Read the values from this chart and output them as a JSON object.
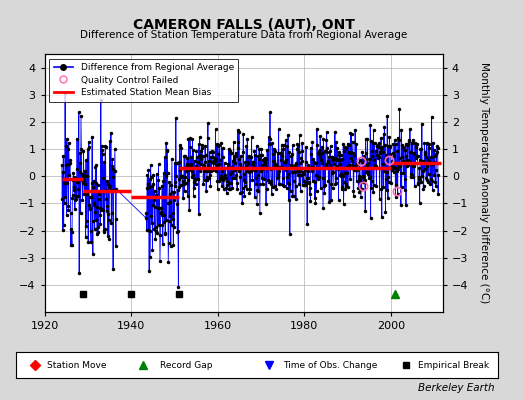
{
  "title": "CAMERON FALLS (AUT), ONT",
  "subtitle": "Difference of Station Temperature Data from Regional Average",
  "ylabel": "Monthly Temperature Anomaly Difference (°C)",
  "xlim": [
    1920,
    2012
  ],
  "ylim": [
    -5,
    4.5
  ],
  "yticks": [
    -4,
    -3,
    -2,
    -1,
    0,
    1,
    2,
    3,
    4
  ],
  "xticks": [
    1920,
    1940,
    1960,
    1980,
    2000
  ],
  "background_color": "#d8d8d8",
  "plot_bg_color": "#ffffff",
  "grid_color": "#b0b0b0",
  "line_color": "#0000ff",
  "bias_color": "#ff0000",
  "marker_color": "#000000",
  "qc_color": "#ff69b4",
  "segments": [
    {
      "x_start": 1924.0,
      "x_end": 1929.0,
      "bias": -0.1
    },
    {
      "x_start": 1929.0,
      "x_end": 1940.0,
      "bias": -0.55
    },
    {
      "x_start": 1940.0,
      "x_end": 1951.0,
      "bias": -0.75
    },
    {
      "x_start": 1951.0,
      "x_end": 2000.0,
      "bias": 0.3
    },
    {
      "x_start": 2000.0,
      "x_end": 2011.5,
      "bias": 0.5
    }
  ],
  "empirical_breaks": [
    1929,
    1940,
    1951
  ],
  "record_gaps": [
    2001
  ],
  "station_moves": [],
  "time_obs_changes": [],
  "qc_failed_approx": [
    [
      1993.0,
      0.55
    ],
    [
      1993.5,
      -0.35
    ],
    [
      1999.5,
      0.6
    ],
    [
      2001.5,
      -0.55
    ]
  ],
  "seed": 12,
  "data_start": 1924,
  "data_end": 2011,
  "gap_periods": [
    [
      1936.6,
      1943.4
    ]
  ]
}
